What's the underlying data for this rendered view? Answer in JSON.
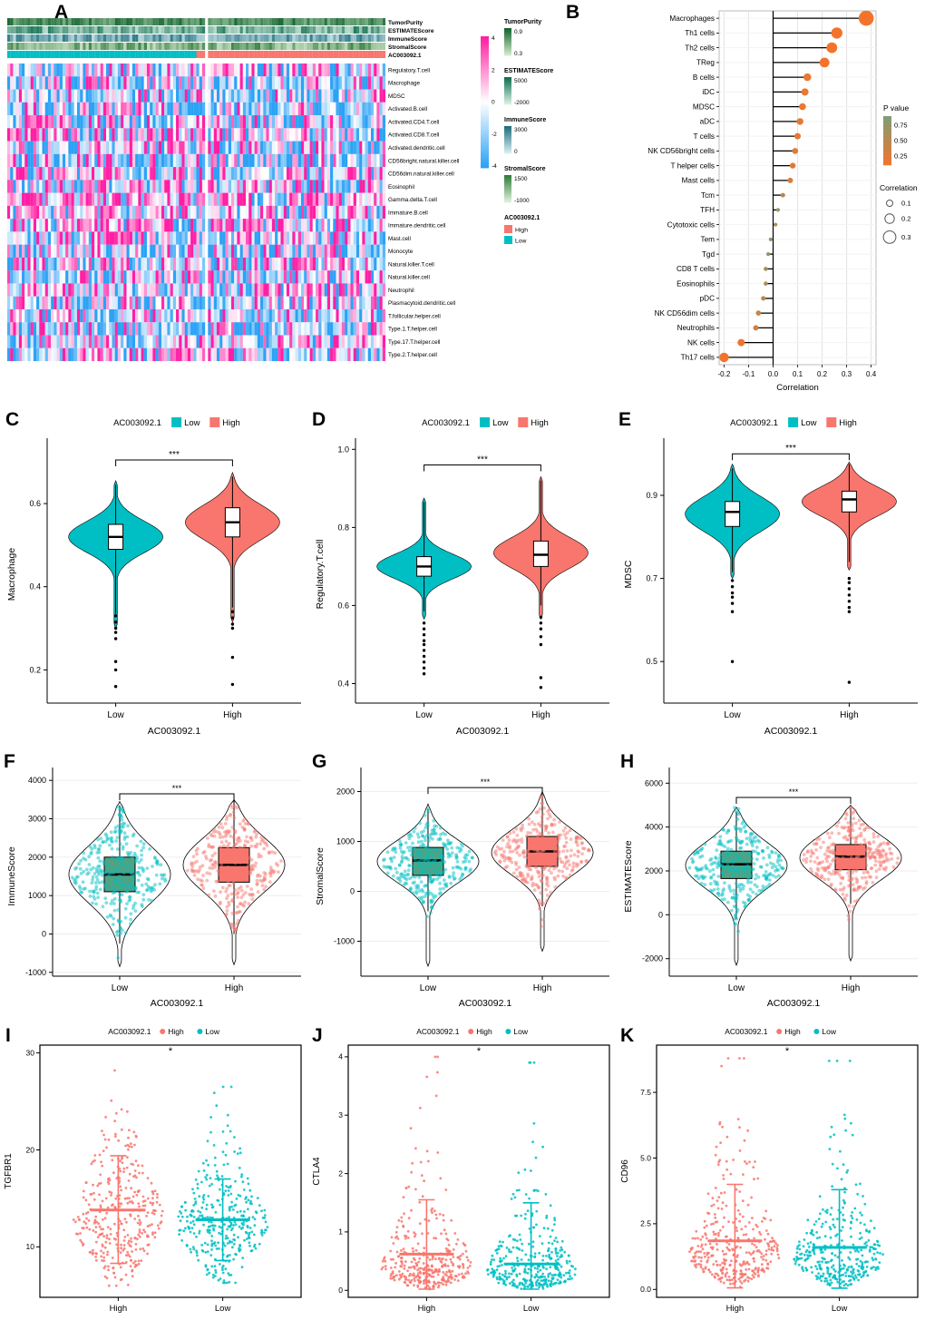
{
  "colors": {
    "teal": "#00BFC4",
    "salmon": "#F8766D",
    "box_green": "#4FA383",
    "heat_pos": "#FF1FA4",
    "heat_neg": "#2CA2F5",
    "p_low": "#F2742C",
    "p_high": "#7E9C74"
  },
  "chart_data": {
    "panelA": {
      "letter": "A",
      "type": "heatmap",
      "n_cols": 130,
      "annotations": [
        {
          "label": "TumorPurity",
          "type": "gradient",
          "c1": "#14632F",
          "c2": "#CFEBCB"
        },
        {
          "label": "ESTIMATEScore",
          "type": "gradient",
          "c1": "#0F6E4F",
          "c2": "#D9F0E4"
        },
        {
          "label": "ImmuneScore",
          "type": "gradient",
          "c1": "#1E6E7D",
          "c2": "#D8EEF0"
        },
        {
          "label": "StromalScore",
          "type": "gradient",
          "c1": "#2E7D3B",
          "c2": "#DFF0DA"
        },
        {
          "label": "AC003092.1",
          "type": "binary",
          "low_color": "#00BFC4",
          "high_color": "#F8766D",
          "split": 0.5
        }
      ],
      "rows": [
        "Regulatory.T.cell",
        "Macrophage",
        "MDSC",
        "Activated.B.cell",
        "Activated.CD4.T.cell",
        "Activated.CD8.T.cell",
        "Activated.dendritic.cell",
        "CD56bright.natural.killer.cell",
        "CD56dim.natural.killer.cell",
        "Eosinophil",
        "Gamma.delta.T.cell",
        "Immature.B.cell",
        "Immature.dendritic.cell",
        "Mast.cell",
        "Monocyte",
        "Natural.killer.T.cell",
        "Natural.killer.cell",
        "Neutrophil",
        "Plasmacytoid.dendritic.cell",
        "T.follicular.helper.cell",
        "Type.1.T.helper.cell",
        "Type.17.T.helper.cell",
        "Type.2.T.helper.cell"
      ],
      "scale_ticks": [
        "4",
        "2",
        "0",
        "-2",
        "-4"
      ],
      "legends": [
        {
          "title": "TumorPurity",
          "ticks": [
            "0.9",
            "0.3"
          ],
          "c1": "#14632F",
          "c2": "#CFEBCB"
        },
        {
          "title": "ESTIMATEScore",
          "ticks": [
            "5000",
            "-2000"
          ],
          "c1": "#0F6E4F",
          "c2": "#D9F0E4"
        },
        {
          "title": "ImmuneScore",
          "ticks": [
            "3000",
            "0"
          ],
          "c1": "#1E6E7D",
          "c2": "#D8EEF0"
        },
        {
          "title": "StromalScore",
          "ticks": [
            "1500",
            "-1000"
          ],
          "c1": "#2E7D3B",
          "c2": "#DFF0DA"
        },
        {
          "title": "AC003092.1",
          "items": [
            {
              "label": "High",
              "color": "#F8766D"
            },
            {
              "label": "Low",
              "color": "#00BFC4"
            }
          ]
        }
      ]
    },
    "panelB": {
      "letter": "B",
      "type": "lollipop",
      "xlabel": "Correlation",
      "x_ticks": [
        {
          "v": -0.2,
          "l": "-0.2"
        },
        {
          "v": -0.1,
          "l": "-0.1"
        },
        {
          "v": 0.0,
          "l": "0.0"
        },
        {
          "v": 0.1,
          "l": "0.1"
        },
        {
          "v": 0.2,
          "l": "0.2"
        },
        {
          "v": 0.3,
          "l": "0.3"
        },
        {
          "v": 0.4,
          "l": "0.4"
        }
      ],
      "cells": [
        {
          "name": "Macrophages",
          "corr": 0.38,
          "p": 0.01
        },
        {
          "name": "Th1 cells",
          "corr": 0.26,
          "p": 0.02
        },
        {
          "name": "Th2 cells",
          "corr": 0.24,
          "p": 0.03
        },
        {
          "name": "TReg",
          "corr": 0.21,
          "p": 0.04
        },
        {
          "name": "B cells",
          "corr": 0.14,
          "p": 0.1
        },
        {
          "name": "iDC",
          "corr": 0.13,
          "p": 0.1
        },
        {
          "name": "MDSC",
          "corr": 0.12,
          "p": 0.12
        },
        {
          "name": "aDC",
          "corr": 0.11,
          "p": 0.14
        },
        {
          "name": "T cells",
          "corr": 0.1,
          "p": 0.15
        },
        {
          "name": "NK CD56bright cells",
          "corr": 0.09,
          "p": 0.18
        },
        {
          "name": "T helper cells",
          "corr": 0.08,
          "p": 0.2
        },
        {
          "name": "Mast cells",
          "corr": 0.07,
          "p": 0.24
        },
        {
          "name": "Tcm",
          "corr": 0.04,
          "p": 0.45
        },
        {
          "name": "TFH",
          "corr": 0.02,
          "p": 0.68
        },
        {
          "name": "Cytotoxic cells",
          "corr": 0.01,
          "p": 0.58
        },
        {
          "name": "Tem",
          "corr": -0.01,
          "p": 0.78
        },
        {
          "name": "Tgd",
          "corr": -0.02,
          "p": 0.72
        },
        {
          "name": "CD8 T cells",
          "corr": -0.03,
          "p": 0.62
        },
        {
          "name": "Eosinophils",
          "corr": -0.03,
          "p": 0.52
        },
        {
          "name": "pDC",
          "corr": -0.04,
          "p": 0.46
        },
        {
          "name": "NK CD56dim cells",
          "corr": -0.06,
          "p": 0.38
        },
        {
          "name": "Neutrophils",
          "corr": -0.07,
          "p": 0.3
        },
        {
          "name": "NK cells",
          "corr": -0.13,
          "p": 0.08
        },
        {
          "name": "Th17 cells",
          "corr": -0.2,
          "p": 0.02
        }
      ],
      "legend_p": {
        "title": "P value",
        "ticks": [
          "0.75",
          "0.50",
          "0.25"
        ]
      },
      "legend_size": {
        "title": "Correlation",
        "values": [
          0.1,
          0.2,
          0.3
        ]
      }
    },
    "violin_panels": [
      {
        "letter": "C",
        "type": "violin-box",
        "ylabel": "Macrophage",
        "xlabel": "AC003092.1",
        "legend_title": "AC003092.1",
        "sig": "***",
        "sig_y": 0.705,
        "ylim": [
          0.12,
          0.74
        ],
        "y_ticks": [
          {
            "v": 0.2,
            "l": "0.2"
          },
          {
            "v": 0.4,
            "l": "0.4"
          },
          {
            "v": 0.6,
            "l": "0.6"
          }
        ],
        "groups": [
          {
            "label": "Low",
            "color_key": "teal",
            "mu": 0.52,
            "sigma": 0.038,
            "lo": 0.3,
            "hi": 0.655,
            "box": {
              "q1": 0.49,
              "med": 0.52,
              "q3": 0.55,
              "wlo": 0.335,
              "whi": 0.645
            },
            "outliers": [
              0.33,
              0.315,
              0.3,
              0.29,
              0.275,
              0.22,
              0.2,
              0.16
            ]
          },
          {
            "label": "High",
            "color_key": "salmon",
            "mu": 0.555,
            "sigma": 0.042,
            "lo": 0.315,
            "hi": 0.675,
            "box": {
              "q1": 0.52,
              "med": 0.555,
              "q3": 0.59,
              "wlo": 0.35,
              "whi": 0.665
            },
            "outliers": [
              0.34,
              0.325,
              0.31,
              0.3,
              0.23,
              0.165
            ]
          }
        ]
      },
      {
        "letter": "D",
        "type": "violin-box",
        "ylabel": "Regulatory.T.cell",
        "xlabel": "AC003092.1",
        "legend_title": "AC003092.1",
        "sig": "***",
        "sig_y": 0.96,
        "ylim": [
          0.35,
          1.01
        ],
        "y_ticks": [
          {
            "v": 0.4,
            "l": "0.4"
          },
          {
            "v": 0.6,
            "l": "0.6"
          },
          {
            "v": 0.8,
            "l": "0.8"
          },
          {
            "v": 1.0,
            "l": "1.0"
          }
        ],
        "groups": [
          {
            "label": "Low",
            "color_key": "teal",
            "mu": 0.7,
            "sigma": 0.032,
            "lo": 0.565,
            "hi": 0.875,
            "box": {
              "q1": 0.675,
              "med": 0.7,
              "q3": 0.725,
              "wlo": 0.585,
              "whi": 0.865
            },
            "outliers": [
              0.555,
              0.54,
              0.525,
              0.51,
              0.5,
              0.485,
              0.47,
              0.455,
              0.44,
              0.425
            ]
          },
          {
            "label": "High",
            "color_key": "salmon",
            "mu": 0.735,
            "sigma": 0.04,
            "lo": 0.565,
            "hi": 0.93,
            "box": {
              "q1": 0.7,
              "med": 0.73,
              "q3": 0.765,
              "wlo": 0.6,
              "whi": 0.92
            },
            "outliers": [
              0.57,
              0.555,
              0.54,
              0.52,
              0.5,
              0.415,
              0.39
            ]
          }
        ]
      },
      {
        "letter": "E",
        "type": "violin-box",
        "ylabel": "MDSC",
        "xlabel": "AC003092.1",
        "legend_title": "AC003092.1",
        "sig": "***",
        "sig_y": 1.0,
        "ylim": [
          0.4,
          1.02
        ],
        "y_ticks": [
          {
            "v": 0.5,
            "l": "0.5"
          },
          {
            "v": 0.7,
            "l": "0.7"
          },
          {
            "v": 0.9,
            "l": "0.9"
          }
        ],
        "groups": [
          {
            "label": "Low",
            "color_key": "teal",
            "mu": 0.855,
            "sigma": 0.042,
            "lo": 0.7,
            "hi": 0.975,
            "box": {
              "q1": 0.825,
              "med": 0.86,
              "q3": 0.885,
              "wlo": 0.715,
              "whi": 0.965
            },
            "outliers": [
              0.695,
              0.68,
              0.665,
              0.655,
              0.64,
              0.62,
              0.5
            ]
          },
          {
            "label": "High",
            "color_key": "salmon",
            "mu": 0.885,
            "sigma": 0.035,
            "lo": 0.72,
            "hi": 0.98,
            "box": {
              "q1": 0.86,
              "med": 0.89,
              "q3": 0.91,
              "wlo": 0.74,
              "whi": 0.975
            },
            "outliers": [
              0.7,
              0.69,
              0.675,
              0.66,
              0.645,
              0.63,
              0.62,
              0.45
            ]
          }
        ]
      }
    ],
    "score_panels": [
      {
        "letter": "F",
        "type": "violin-scatter",
        "ylabel": "ImmuneScore",
        "xlabel": "AC003092.1",
        "sig": "***",
        "sig_y": 3650,
        "ylim": [
          -1100,
          4100
        ],
        "y_ticks": [
          {
            "v": -1000,
            "l": "-1000"
          },
          {
            "v": 0,
            "l": "0"
          },
          {
            "v": 1000,
            "l": "1000"
          },
          {
            "v": 2000,
            "l": "2000"
          },
          {
            "v": 3000,
            "l": "3000"
          },
          {
            "v": 4000,
            "l": "4000"
          }
        ],
        "groups": [
          {
            "label": "Low",
            "color_key": "teal",
            "box_key": "box_green",
            "n": 300,
            "mu": 1550,
            "sigma": 750,
            "lo": -850,
            "hi": 3450,
            "box": {
              "q1": 1100,
              "med": 1550,
              "q3": 2000,
              "wlo": -250,
              "whi": 3350
            }
          },
          {
            "label": "High",
            "color_key": "salmon",
            "box_key": "salmon",
            "n": 300,
            "mu": 1800,
            "sigma": 700,
            "lo": -800,
            "hi": 3500,
            "box": {
              "q1": 1350,
              "med": 1800,
              "q3": 2250,
              "wlo": 0,
              "whi": 3480
            }
          }
        ]
      },
      {
        "letter": "G",
        "type": "violin-scatter",
        "ylabel": "StromalScore",
        "xlabel": "AC003092.1",
        "sig": "***",
        "sig_y": 2080,
        "ylim": [
          -1700,
          2300
        ],
        "y_ticks": [
          {
            "v": -1000,
            "l": "-1000"
          },
          {
            "v": 0,
            "l": "0"
          },
          {
            "v": 1000,
            "l": "1000"
          },
          {
            "v": 2000,
            "l": "2000"
          }
        ],
        "groups": [
          {
            "label": "Low",
            "color_key": "teal",
            "box_key": "box_green",
            "n": 300,
            "mu": 600,
            "sigma": 420,
            "lo": -1500,
            "hi": 1750,
            "box": {
              "q1": 320,
              "med": 620,
              "q3": 880,
              "wlo": -400,
              "whi": 1650
            }
          },
          {
            "label": "High",
            "color_key": "salmon",
            "box_key": "salmon",
            "n": 300,
            "mu": 780,
            "sigma": 450,
            "lo": -1200,
            "hi": 2000,
            "box": {
              "q1": 500,
              "med": 800,
              "q3": 1100,
              "wlo": -300,
              "whi": 1950
            }
          }
        ]
      },
      {
        "letter": "H",
        "type": "violin-scatter",
        "ylabel": "ESTIMATEScore",
        "xlabel": "AC003092.1",
        "sig": "***",
        "sig_y": 5350,
        "ylim": [
          -2800,
          6300
        ],
        "y_ticks": [
          {
            "v": -2000,
            "l": "-2000"
          },
          {
            "v": 0,
            "l": "0"
          },
          {
            "v": 2000,
            "l": "2000"
          },
          {
            "v": 4000,
            "l": "4000"
          },
          {
            "v": 6000,
            "l": "6000"
          }
        ],
        "groups": [
          {
            "label": "Low",
            "color_key": "teal",
            "box_key": "box_green",
            "n": 300,
            "mu": 2250,
            "sigma": 1050,
            "lo": -2300,
            "hi": 4900,
            "box": {
              "q1": 1650,
              "med": 2300,
              "q3": 2900,
              "wlo": -200,
              "whi": 4700
            }
          },
          {
            "label": "High",
            "color_key": "salmon",
            "box_key": "salmon",
            "n": 300,
            "mu": 2600,
            "sigma": 1000,
            "lo": -2100,
            "hi": 5000,
            "box": {
              "q1": 2050,
              "med": 2650,
              "q3": 3200,
              "wlo": 500,
              "whi": 4900
            }
          }
        ]
      }
    ],
    "strip_panels": [
      {
        "letter": "I",
        "type": "strip",
        "ylabel": "TGFBR1",
        "legend_title": "AC003092.1",
        "sig": "*",
        "ylim": [
          4.8,
          30.8
        ],
        "y_ticks": [
          {
            "v": 10,
            "l": "10"
          },
          {
            "v": 20,
            "l": "20"
          },
          {
            "v": 30,
            "l": "30"
          }
        ],
        "groups": [
          {
            "label": "High",
            "color_key": "salmon",
            "n": 350,
            "med": 13.0,
            "lsig": 0.3,
            "min": 6.0,
            "max": 30.0,
            "mean": 13.8,
            "sd_lo": 8.3,
            "sd_hi": 19.4
          },
          {
            "label": "Low",
            "color_key": "teal",
            "n": 350,
            "med": 12.3,
            "lsig": 0.27,
            "min": 6.3,
            "max": 26.5,
            "mean": 12.8,
            "sd_lo": 8.6,
            "sd_hi": 17.0
          }
        ]
      },
      {
        "letter": "J",
        "type": "strip",
        "ylabel": "CTLA4",
        "legend_title": "AC003092.1",
        "sig": "*",
        "ylim": [
          -0.12,
          4.2
        ],
        "y_ticks": [
          {
            "v": 0,
            "l": "0"
          },
          {
            "v": 1,
            "l": "1"
          },
          {
            "v": 2,
            "l": "2"
          },
          {
            "v": 3,
            "l": "3"
          },
          {
            "v": 4,
            "l": "4"
          }
        ],
        "groups": [
          {
            "label": "High",
            "color_key": "salmon",
            "n": 350,
            "med": 0.42,
            "lsig": 0.95,
            "min": 0.02,
            "max": 4.0,
            "mean": 0.62,
            "sd_lo": 0.02,
            "sd_hi": 1.55
          },
          {
            "label": "Low",
            "color_key": "teal",
            "n": 350,
            "med": 0.32,
            "lsig": 0.95,
            "min": 0.02,
            "max": 3.9,
            "mean": 0.45,
            "sd_lo": 0.02,
            "sd_hi": 1.5
          }
        ]
      },
      {
        "letter": "K",
        "type": "strip",
        "ylabel": "CD96",
        "legend_title": "AC003092.1",
        "sig": "*",
        "ylim": [
          -0.3,
          9.3
        ],
        "y_ticks": [
          {
            "v": 0,
            "l": "0.0"
          },
          {
            "v": 2.5,
            "l": "2.5"
          },
          {
            "v": 5,
            "l": "5.0"
          },
          {
            "v": 7.5,
            "l": "7.5"
          }
        ],
        "groups": [
          {
            "label": "High",
            "color_key": "salmon",
            "n": 350,
            "med": 1.4,
            "lsig": 0.78,
            "min": 0.08,
            "max": 8.8,
            "mean": 1.85,
            "sd_lo": 0.06,
            "sd_hi": 4.0
          },
          {
            "label": "Low",
            "color_key": "teal",
            "n": 350,
            "med": 1.2,
            "lsig": 0.78,
            "min": 0.06,
            "max": 8.7,
            "mean": 1.6,
            "sd_lo": 0.05,
            "sd_hi": 3.8
          }
        ]
      }
    ]
  }
}
